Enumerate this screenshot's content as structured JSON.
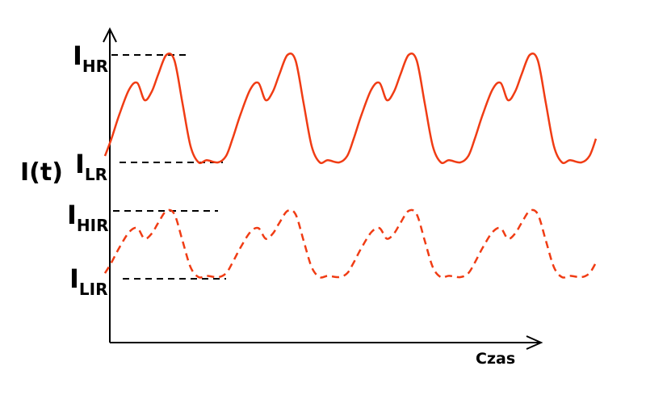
{
  "axes": {
    "y_label": "I(t)",
    "x_label": "Czas"
  },
  "levels": {
    "HR": {
      "main": "I",
      "sub": "HR"
    },
    "LR": {
      "main": "I",
      "sub": "LR"
    },
    "HIR": {
      "main": "I",
      "sub": "HIR"
    },
    "LIR": {
      "main": "I",
      "sub": "LIR"
    }
  },
  "colors": {
    "curve": "#f03c14",
    "axis": "#000000"
  }
}
